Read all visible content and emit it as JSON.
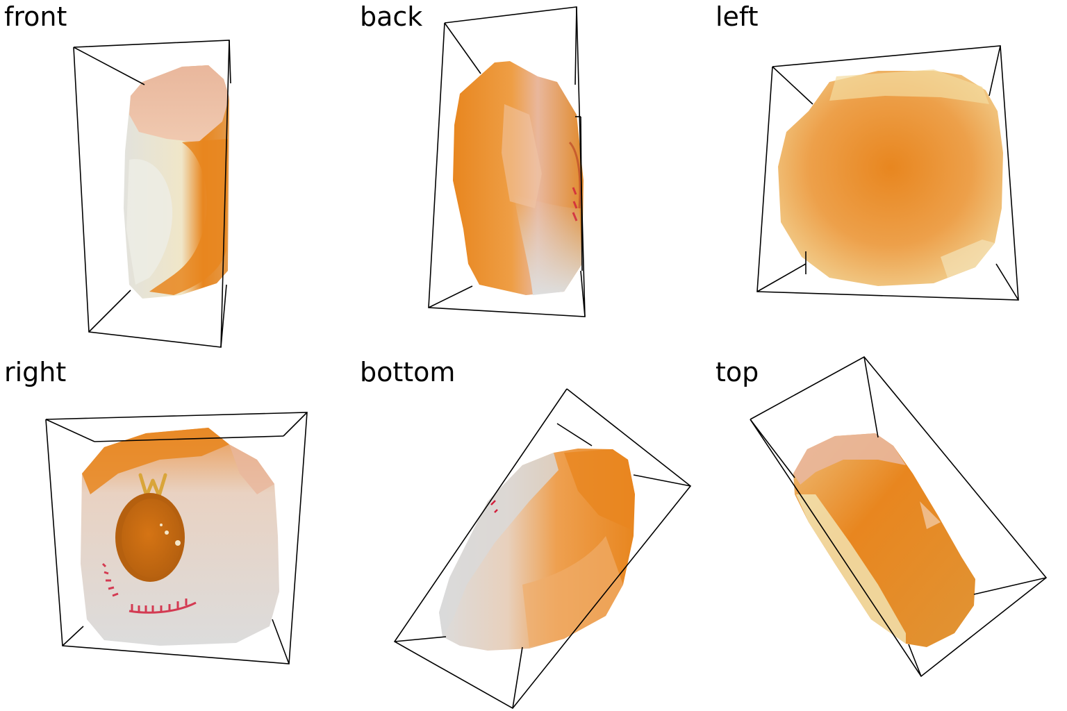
{
  "colors": {
    "orange": "#E8861F",
    "dark_orange": "#C96A10",
    "pale_orange": "#F2B06A",
    "peach": "#E9B79C",
    "cream": "#F1E3B8",
    "gray_white": "#DEDEDE",
    "print_red": "#D21F3C",
    "gold": "#D9A53A",
    "bbox": "#000000"
  },
  "views": [
    {
      "id": "front",
      "label": "front"
    },
    {
      "id": "back",
      "label": "back"
    },
    {
      "id": "left",
      "label": "left"
    },
    {
      "id": "right",
      "label": "right"
    },
    {
      "id": "bottom",
      "label": "bottom"
    },
    {
      "id": "top",
      "label": "top"
    }
  ]
}
